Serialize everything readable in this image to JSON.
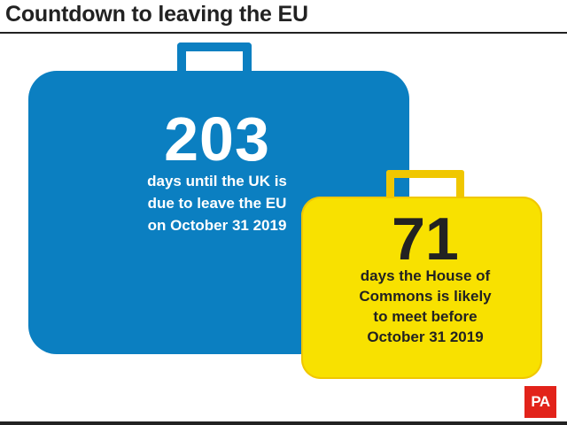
{
  "header": {
    "title": "Countdown to leaving the EU"
  },
  "blue_case": {
    "number": "203",
    "lines": [
      "days until the UK is",
      "due to leave the EU",
      "on October 31 2019"
    ],
    "color": "#0b7fc1"
  },
  "yellow_case": {
    "number": "71",
    "lines": [
      "days the House of",
      "Commons is likely",
      "to meet before",
      "October 31 2019"
    ],
    "color": "#f8e100"
  },
  "logo": {
    "text": "PA",
    "color": "#e2231a"
  }
}
